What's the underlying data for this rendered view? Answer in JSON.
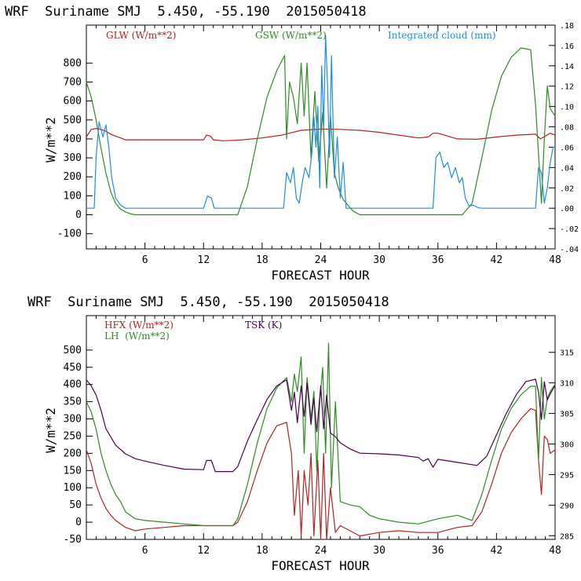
{
  "chart_data": [
    {
      "type": "line",
      "title": "WRF  Suriname SMJ  5.450, -55.190  2015050418",
      "xlabel": "FORECAST HOUR",
      "ylabel": "W/m**2",
      "xlim": [
        0,
        48
      ],
      "xticks": [
        6,
        12,
        18,
        24,
        30,
        36,
        42,
        48
      ],
      "xtick_labels": [
        "6",
        "12",
        "18",
        "24",
        "30",
        "36",
        "42",
        "48"
      ],
      "ylim": [
        -180,
        1000
      ],
      "yticks": [
        -100,
        0,
        100,
        200,
        300,
        400,
        500,
        600,
        700,
        800
      ],
      "ytick_labels": [
        "-100",
        "0",
        "100",
        "200",
        "300",
        "400",
        "500",
        "600",
        "700",
        "800"
      ],
      "y2lim": [
        -0.04,
        0.18
      ],
      "y2ticks": [
        -0.04,
        -0.02,
        0,
        0.02,
        0.04,
        0.06,
        0.08,
        0.1,
        0.12,
        0.14,
        0.16,
        0.18
      ],
      "y2tick_labels": [
        "-.04",
        "-.02",
        ".00",
        ".02",
        ".04",
        ".06",
        ".08",
        ".10",
        ".12",
        ".14",
        ".16",
        ".18"
      ],
      "legend": [
        {
          "name": "GLW (W/m**2)",
          "color": "#b22222"
        },
        {
          "name": "GSW (W/m**2)",
          "color": "#2e8b22"
        },
        {
          "name": "Integrated cloud (mm)",
          "color": "#1e8ce6"
        }
      ],
      "series": [
        {
          "name": "GLW (W/m**2)",
          "color": "#b22222",
          "axis": "left",
          "x": [
            0,
            0.5,
            1,
            1.5,
            2,
            2.5,
            3,
            4,
            6,
            8,
            10,
            12,
            12.3,
            12.7,
            13,
            14,
            15,
            16,
            18,
            20,
            22,
            24,
            26,
            28,
            30,
            32,
            34,
            35,
            35.5,
            36,
            38,
            40,
            42,
            44,
            46,
            46.5,
            47,
            47.5,
            48
          ],
          "y": [
            410,
            450,
            455,
            450,
            440,
            425,
            415,
            395,
            395,
            395,
            395,
            395,
            420,
            415,
            395,
            390,
            392,
            395,
            405,
            420,
            445,
            452,
            450,
            445,
            435,
            420,
            405,
            410,
            430,
            430,
            400,
            398,
            410,
            420,
            425,
            400,
            415,
            430,
            420
          ]
        },
        {
          "name": "GSW (W/m**2)",
          "color": "#2e8b22",
          "axis": "left",
          "x": [
            0,
            0.5,
            1,
            1.5,
            2,
            2.5,
            3,
            3.5,
            4,
            4.5,
            5,
            15.5,
            16.5,
            17.5,
            18.5,
            19.5,
            20.3,
            20.5,
            20.8,
            21.2,
            21.6,
            22,
            22.3,
            22.6,
            23,
            23.4,
            23.8,
            24.2,
            24.6,
            25,
            25.4,
            25.8,
            26.3,
            26.8,
            27.3,
            28,
            38.5,
            39.5,
            40.5,
            41.5,
            42.5,
            43.5,
            44.5,
            45.5,
            46,
            46.3,
            46.6,
            46.9,
            47.2,
            47.5,
            48
          ],
          "y": [
            700,
            620,
            500,
            350,
            220,
            120,
            60,
            30,
            15,
            5,
            0,
            0,
            150,
            400,
            620,
            760,
            840,
            400,
            700,
            620,
            480,
            800,
            520,
            800,
            300,
            650,
            280,
            540,
            140,
            520,
            220,
            140,
            80,
            50,
            20,
            0,
            0,
            60,
            300,
            550,
            730,
            830,
            880,
            870,
            580,
            320,
            60,
            400,
            680,
            560,
            520
          ]
        },
        {
          "name": "Integrated cloud (mm)",
          "color": "#1e8ce6",
          "axis": "right",
          "x": [
            0,
            0.8,
            1,
            1.3,
            1.7,
            2,
            2.3,
            2.6,
            3,
            3.5,
            4,
            12,
            12.4,
            12.8,
            13.1,
            20.2,
            20.5,
            20.9,
            21.2,
            21.5,
            21.8,
            22.1,
            22.4,
            22.8,
            23.1,
            23.3,
            23.5,
            23.7,
            23.9,
            24.1,
            24.3,
            24.5,
            24.7,
            24.9,
            25.1,
            25.4,
            25.7,
            26,
            26.3,
            26.6,
            35.5,
            35.8,
            36.2,
            36.6,
            37,
            37.4,
            37.8,
            38.2,
            38.5,
            38.8,
            39.2,
            39.6,
            40,
            40.4,
            46,
            46.3,
            46.6,
            46.9,
            47.2,
            47.5,
            47.8,
            48
          ],
          "y": [
            0,
            0,
            0.05,
            0.085,
            0.07,
            0.082,
            0.06,
            0.03,
            0.01,
            0.003,
            0,
            0,
            0.012,
            0.01,
            0,
            0,
            0.035,
            0.025,
            0.04,
            0.01,
            0.005,
            0.025,
            0.04,
            0.03,
            0.055,
            0.09,
            0.06,
            0.1,
            0.02,
            0.14,
            0.08,
            0.17,
            0.12,
            0.05,
            0.15,
            0.03,
            0.07,
            0.01,
            0.045,
            0,
            0,
            0.05,
            0.055,
            0.04,
            0.045,
            0.03,
            0.04,
            0.025,
            0.03,
            0.01,
            0.002,
            0.003,
            0.001,
            0,
            0,
            0.04,
            0.035,
            0.005,
            0.02,
            0.045,
            0.06,
            0.06
          ]
        }
      ]
    },
    {
      "type": "line",
      "title": "WRF  Suriname SMJ  5.450, -55.190  2015050418",
      "xlabel": "FORECAST HOUR",
      "ylabel": "W/m**2",
      "xlim": [
        0,
        48
      ],
      "xticks": [
        6,
        12,
        18,
        24,
        30,
        36,
        42,
        48
      ],
      "xtick_labels": [
        "6",
        "12",
        "18",
        "24",
        "30",
        "36",
        "42",
        "48"
      ],
      "ylim": [
        -50,
        600
      ],
      "yticks": [
        -50,
        0,
        50,
        100,
        150,
        200,
        250,
        300,
        350,
        400,
        450,
        500
      ],
      "ytick_labels": [
        "-50",
        "0",
        "50",
        "100",
        "150",
        "200",
        "250",
        "300",
        "350",
        "400",
        "450",
        "500"
      ],
      "y2lim": [
        284.4,
        321
      ],
      "y2ticks": [
        285,
        290,
        295,
        300,
        305,
        310,
        315
      ],
      "y2tick_labels": [
        "285",
        "290",
        "295",
        "300",
        "305",
        "310",
        "315"
      ],
      "legend": [
        {
          "name": "HFX (W/m**2)",
          "color": "#b22222"
        },
        {
          "name": "LH  (W/m**2)",
          "color": "#2e8b22"
        },
        {
          "name": "TSK (K)",
          "color": "#4b0050"
        }
      ],
      "series": [
        {
          "name": "HFX (W/m**2)",
          "color": "#b22222",
          "axis": "left",
          "x": [
            0,
            0.5,
            1,
            1.5,
            2,
            2.5,
            3,
            4,
            5,
            6,
            8,
            10,
            12,
            13,
            15,
            15.5,
            16.5,
            17.5,
            18.5,
            19.5,
            20.5,
            21,
            21.3,
            21.7,
            22,
            22.3,
            22.7,
            23,
            23.3,
            23.7,
            24,
            24.3,
            24.6,
            25,
            25.5,
            26,
            27,
            28,
            30,
            32,
            34,
            36,
            38,
            39.5,
            40.5,
            41.5,
            42.5,
            43.5,
            44.5,
            45.5,
            46,
            46.3,
            46.6,
            46.9,
            47.2,
            47.5,
            48
          ],
          "y": [
            210,
            170,
            110,
            70,
            40,
            20,
            5,
            -15,
            -25,
            -20,
            -15,
            -10,
            -10,
            -10,
            -10,
            0,
            60,
            150,
            230,
            280,
            290,
            200,
            20,
            150,
            -40,
            150,
            50,
            200,
            -40,
            180,
            -50,
            200,
            -50,
            100,
            -30,
            -10,
            -25,
            -40,
            -30,
            -25,
            -30,
            -30,
            -15,
            -10,
            30,
            110,
            200,
            260,
            300,
            330,
            325,
            180,
            80,
            250,
            240,
            200,
            210
          ]
        },
        {
          "name": "LH  (W/m**2)",
          "color": "#2e8b22",
          "axis": "left",
          "x": [
            0,
            0.5,
            1,
            1.5,
            2,
            2.5,
            3,
            3.5,
            4,
            5,
            6,
            8,
            10,
            12,
            15,
            15.5,
            16.5,
            17.5,
            18.5,
            19.5,
            20.5,
            21,
            21.3,
            21.6,
            22,
            22.3,
            22.6,
            23,
            23.3,
            23.6,
            23.9,
            24.2,
            24.5,
            24.8,
            25.1,
            25.5,
            26,
            27,
            28,
            29,
            30,
            32,
            34,
            36,
            38,
            39.5,
            40.5,
            41.5,
            42.5,
            43.5,
            44.5,
            45.5,
            46,
            46.3,
            46.6,
            46.9,
            47.2,
            47.5,
            48
          ],
          "y": [
            350,
            320,
            270,
            200,
            150,
            110,
            80,
            60,
            30,
            10,
            5,
            0,
            -5,
            -10,
            -10,
            10,
            110,
            230,
            330,
            390,
            420,
            350,
            430,
            380,
            480,
            200,
            420,
            300,
            380,
            150,
            350,
            450,
            200,
            520,
            100,
            350,
            60,
            50,
            45,
            20,
            10,
            0,
            -5,
            10,
            20,
            5,
            80,
            180,
            270,
            330,
            370,
            395,
            395,
            180,
            420,
            300,
            360,
            380,
            400
          ]
        },
        {
          "name": "TSK (K)",
          "color": "#4b0050",
          "axis": "right",
          "x": [
            0,
            0.5,
            1,
            1.5,
            2,
            3,
            4,
            5,
            6,
            8,
            10,
            12,
            12.3,
            12.8,
            13.2,
            15,
            15.5,
            16.5,
            17.5,
            18.5,
            19.5,
            20.5,
            21,
            21.3,
            21.6,
            22,
            22.3,
            22.6,
            23,
            23.3,
            23.6,
            24,
            24.3,
            24.6,
            25,
            25.5,
            26,
            27,
            28,
            30,
            32,
            34,
            34.5,
            35,
            35.5,
            36,
            38,
            40,
            41,
            42,
            43,
            44,
            45,
            46,
            46.3,
            46.6,
            46.9,
            47.2,
            47.5,
            48
          ],
          "y": [
            310.5,
            309.5,
            308,
            305.5,
            302.5,
            299.8,
            298.4,
            297.6,
            297.2,
            296.5,
            295.9,
            295.8,
            297.3,
            297.3,
            295.5,
            295.5,
            296.3,
            300.5,
            304,
            307.3,
            309.5,
            310.5,
            305.5,
            308.5,
            303.5,
            309.5,
            304.5,
            310,
            303.2,
            307.5,
            302,
            309.5,
            302.5,
            308,
            301.8,
            301.2,
            300.2,
            299.2,
            298.5,
            298.4,
            298.2,
            297.8,
            297.2,
            297.6,
            296.2,
            297.5,
            297,
            296.5,
            298,
            301.5,
            305,
            308,
            310.2,
            310.6,
            308.5,
            304,
            310.2,
            307.2,
            308.2,
            309.6
          ]
        }
      ]
    }
  ]
}
